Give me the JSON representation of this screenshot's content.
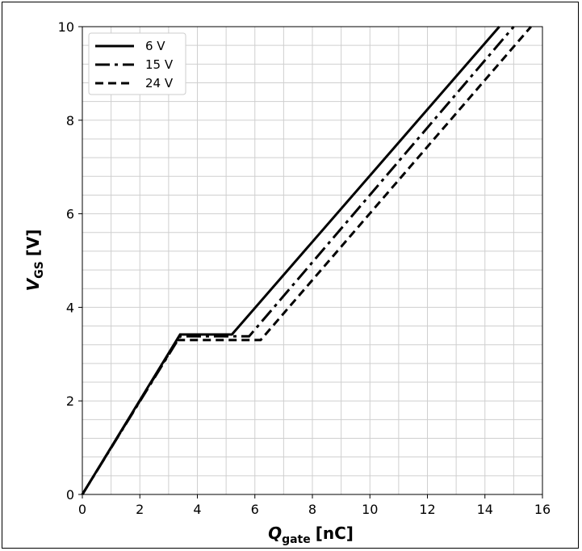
{
  "chart_data": {
    "type": "line",
    "title": "",
    "xlabel_main": "Q",
    "xlabel_sub": "gate",
    "xlabel_unit": "[nC]",
    "ylabel_main": "V",
    "ylabel_sub": "GS",
    "ylabel_unit": "[V]",
    "xlim": [
      0,
      16
    ],
    "ylim": [
      0,
      10
    ],
    "xticks": [
      0,
      2,
      4,
      6,
      8,
      10,
      12,
      14,
      16
    ],
    "yticks": [
      0,
      2,
      4,
      6,
      8,
      10
    ],
    "grid": true,
    "legend_position": "top-left",
    "series": [
      {
        "name": "6 V",
        "style": "solid",
        "x": [
          0,
          3.4,
          5.2,
          14.5
        ],
        "y": [
          0,
          3.42,
          3.42,
          10
        ]
      },
      {
        "name": "15 V",
        "style": "dashdot",
        "x": [
          0,
          3.4,
          5.8,
          15.0
        ],
        "y": [
          0,
          3.38,
          3.38,
          10
        ]
      },
      {
        "name": "24 V",
        "style": "dashed",
        "x": [
          0,
          3.3,
          6.2,
          15.6
        ],
        "y": [
          0,
          3.3,
          3.3,
          10
        ]
      }
    ]
  }
}
